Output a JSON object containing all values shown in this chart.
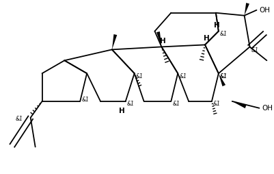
{
  "bg_color": "#ffffff",
  "lc": "#000000",
  "lw": 1.3,
  "figsize": [
    4.02,
    2.54
  ],
  "dpi": 100,
  "xlim": [
    0,
    402
  ],
  "ylim": [
    0,
    254
  ]
}
